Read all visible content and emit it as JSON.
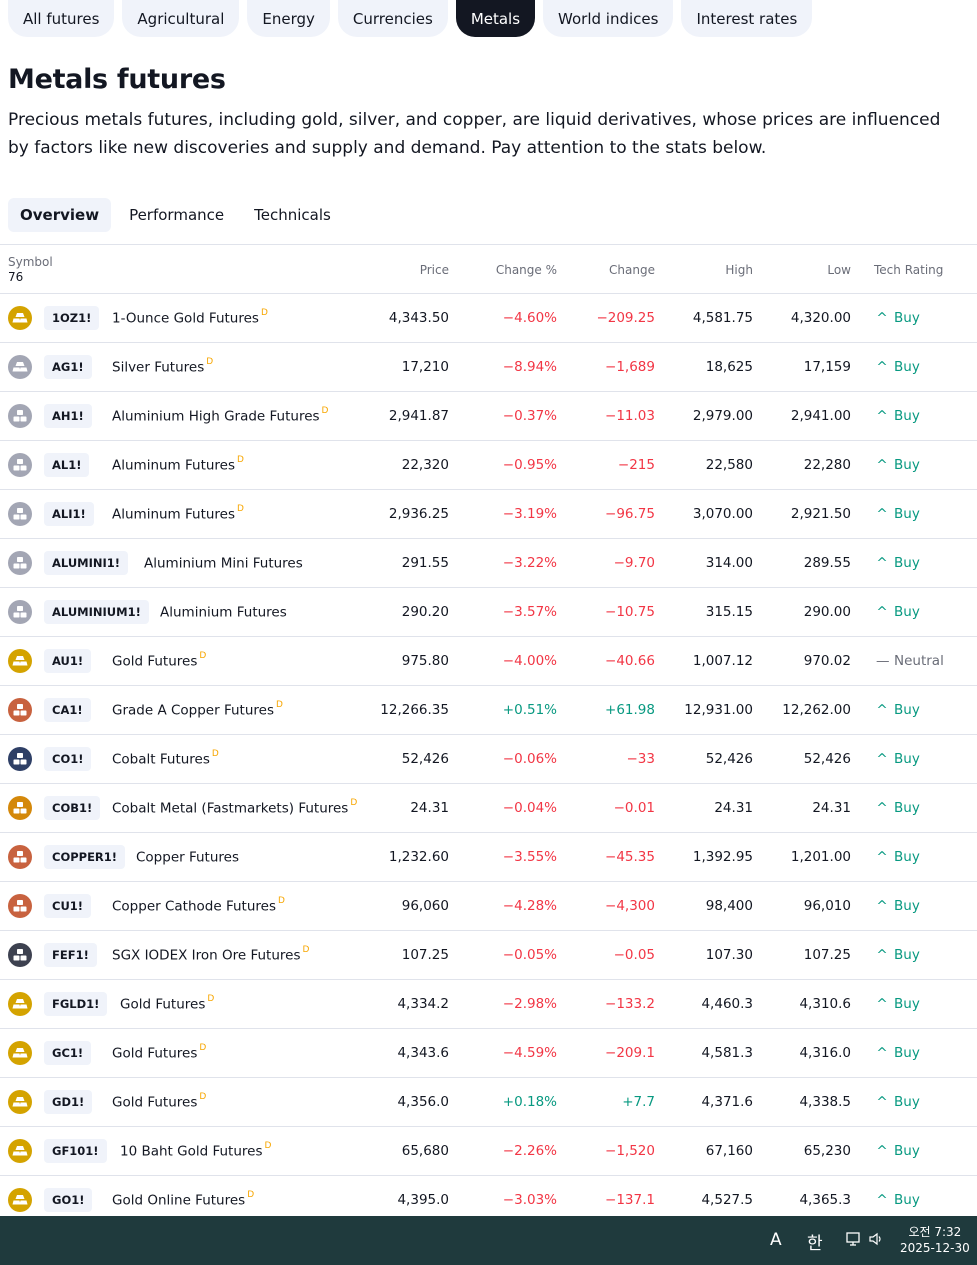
{
  "categories": [
    {
      "label": "All futures",
      "active": false
    },
    {
      "label": "Agricultural",
      "active": false
    },
    {
      "label": "Energy",
      "active": false
    },
    {
      "label": "Currencies",
      "active": false
    },
    {
      "label": "Metals",
      "active": true
    },
    {
      "label": "World indices",
      "active": false
    },
    {
      "label": "Interest rates",
      "active": false
    }
  ],
  "page": {
    "title": "Metals futures",
    "description": "Precious metals futures, including gold, silver, and copper, are liquid derivatives, whose prices are influenced by factors like new discoveries and supply and demand. Pay attention to the stats below."
  },
  "tabs": [
    {
      "label": "Overview",
      "active": true
    },
    {
      "label": "Performance",
      "active": false
    },
    {
      "label": "Technicals",
      "active": false
    }
  ],
  "table": {
    "headers": {
      "symbol": "Symbol",
      "count": "76",
      "price": "Price",
      "change_pct": "Change %",
      "change": "Change",
      "high": "High",
      "low": "Low",
      "tech_rating": "Tech Rating"
    },
    "rows": [
      {
        "ticker": "1OZ1!",
        "name": "1-Ounce Gold Futures",
        "delayed": "D",
        "icon": "gold-bars-icon",
        "icon_color": "#d4a300",
        "price": "4,343.50",
        "change_pct": "−4.60%",
        "change": "−209.25",
        "high": "4,581.75",
        "low": "4,320.00",
        "rating": "Buy",
        "rating_icon": "^",
        "dir": "neg"
      },
      {
        "ticker": "AG1!",
        "name": "Silver Futures",
        "delayed": "D",
        "icon": "silver-bars-icon",
        "icon_color": "#a3a6b4",
        "price": "17,210",
        "change_pct": "−8.94%",
        "change": "−1,689",
        "high": "18,625",
        "low": "17,159",
        "rating": "Buy",
        "rating_icon": "^",
        "dir": "neg"
      },
      {
        "ticker": "AH1!",
        "name": "Aluminium High Grade Futures",
        "delayed": "D",
        "icon": "aluminium-blocks-icon",
        "icon_color": "#a3a6b4",
        "price": "2,941.87",
        "change_pct": "−0.37%",
        "change": "−11.03",
        "high": "2,979.00",
        "low": "2,941.00",
        "rating": "Buy",
        "rating_icon": "^",
        "dir": "neg"
      },
      {
        "ticker": "AL1!",
        "name": "Aluminum Futures",
        "delayed": "D",
        "icon": "aluminium-blocks-icon",
        "icon_color": "#a3a6b4",
        "price": "22,320",
        "change_pct": "−0.95%",
        "change": "−215",
        "high": "22,580",
        "low": "22,280",
        "rating": "Buy",
        "rating_icon": "^",
        "dir": "neg"
      },
      {
        "ticker": "ALI1!",
        "name": "Aluminum Futures",
        "delayed": "D",
        "icon": "aluminium-blocks-icon",
        "icon_color": "#a3a6b4",
        "price": "2,936.25",
        "change_pct": "−3.19%",
        "change": "−96.75",
        "high": "3,070.00",
        "low": "2,921.50",
        "rating": "Buy",
        "rating_icon": "^",
        "dir": "neg"
      },
      {
        "ticker": "ALUMINI1!",
        "name": "Aluminium Mini Futures",
        "delayed": "",
        "icon": "aluminium-blocks-icon",
        "icon_color": "#a3a6b4",
        "price": "291.55",
        "change_pct": "−3.22%",
        "change": "−9.70",
        "high": "314.00",
        "low": "289.55",
        "rating": "Buy",
        "rating_icon": "^",
        "dir": "neg"
      },
      {
        "ticker": "ALUMINIUM1!",
        "name": "Aluminium Futures",
        "delayed": "",
        "icon": "aluminium-blocks-icon",
        "icon_color": "#a3a6b4",
        "price": "290.20",
        "change_pct": "−3.57%",
        "change": "−10.75",
        "high": "315.15",
        "low": "290.00",
        "rating": "Buy",
        "rating_icon": "^",
        "dir": "neg"
      },
      {
        "ticker": "AU1!",
        "name": "Gold Futures",
        "delayed": "D",
        "icon": "gold-bars-icon",
        "icon_color": "#d4a300",
        "price": "975.80",
        "change_pct": "−4.00%",
        "change": "−40.66",
        "high": "1,007.12",
        "low": "970.02",
        "rating": "Neutral",
        "rating_icon": "—",
        "dir": "neg"
      },
      {
        "ticker": "CA1!",
        "name": "Grade A Copper Futures",
        "delayed": "D",
        "icon": "copper-blocks-icon",
        "icon_color": "#c8623f",
        "price": "12,266.35",
        "change_pct": "+0.51%",
        "change": "+61.98",
        "high": "12,931.00",
        "low": "12,262.00",
        "rating": "Buy",
        "rating_icon": "^",
        "dir": "pos"
      },
      {
        "ticker": "CO1!",
        "name": "Cobalt Futures",
        "delayed": "D",
        "icon": "cobalt-blocks-icon",
        "icon_color": "#2e3f66",
        "price": "52,426",
        "change_pct": "−0.06%",
        "change": "−33",
        "high": "52,426",
        "low": "52,426",
        "rating": "Buy",
        "rating_icon": "^",
        "dir": "neg"
      },
      {
        "ticker": "COB1!",
        "name": "Cobalt Metal (Fastmarkets) Futures",
        "delayed": "D",
        "icon": "cobalt-blocks-icon",
        "icon_color": "#d4880a",
        "price": "24.31",
        "change_pct": "−0.04%",
        "change": "−0.01",
        "high": "24.31",
        "low": "24.31",
        "rating": "Buy",
        "rating_icon": "^",
        "dir": "neg"
      },
      {
        "ticker": "COPPER1!",
        "name": "Copper Futures",
        "delayed": "",
        "icon": "copper-blocks-icon",
        "icon_color": "#c8623f",
        "price": "1,232.60",
        "change_pct": "−3.55%",
        "change": "−45.35",
        "high": "1,392.95",
        "low": "1,201.00",
        "rating": "Buy",
        "rating_icon": "^",
        "dir": "neg"
      },
      {
        "ticker": "CU1!",
        "name": "Copper Cathode Futures",
        "delayed": "D",
        "icon": "copper-blocks-icon",
        "icon_color": "#c8623f",
        "price": "96,060",
        "change_pct": "−4.28%",
        "change": "−4,300",
        "high": "98,400",
        "low": "96,010",
        "rating": "Buy",
        "rating_icon": "^",
        "dir": "neg"
      },
      {
        "ticker": "FEF1!",
        "name": "SGX IODEX Iron Ore Futures",
        "delayed": "D",
        "icon": "iron-ore-blocks-icon",
        "icon_color": "#3d4150",
        "price": "107.25",
        "change_pct": "−0.05%",
        "change": "−0.05",
        "high": "107.30",
        "low": "107.25",
        "rating": "Buy",
        "rating_icon": "^",
        "dir": "neg"
      },
      {
        "ticker": "FGLD1!",
        "name": "Gold Futures",
        "delayed": "D",
        "icon": "gold-bars-icon",
        "icon_color": "#d4a300",
        "price": "4,334.2",
        "change_pct": "−2.98%",
        "change": "−133.2",
        "high": "4,460.3",
        "low": "4,310.6",
        "rating": "Buy",
        "rating_icon": "^",
        "dir": "neg"
      },
      {
        "ticker": "GC1!",
        "name": "Gold Futures",
        "delayed": "D",
        "icon": "gold-bars-icon",
        "icon_color": "#d4a300",
        "price": "4,343.6",
        "change_pct": "−4.59%",
        "change": "−209.1",
        "high": "4,581.3",
        "low": "4,316.0",
        "rating": "Buy",
        "rating_icon": "^",
        "dir": "neg"
      },
      {
        "ticker": "GD1!",
        "name": "Gold Futures",
        "delayed": "D",
        "icon": "gold-bars-icon",
        "icon_color": "#d4a300",
        "price": "4,356.0",
        "change_pct": "+0.18%",
        "change": "+7.7",
        "high": "4,371.6",
        "low": "4,338.5",
        "rating": "Buy",
        "rating_icon": "^",
        "dir": "pos"
      },
      {
        "ticker": "GF101!",
        "name": "10 Baht Gold Futures",
        "delayed": "D",
        "icon": "gold-bars-icon",
        "icon_color": "#d4a300",
        "price": "65,680",
        "change_pct": "−2.26%",
        "change": "−1,520",
        "high": "67,160",
        "low": "65,230",
        "rating": "Buy",
        "rating_icon": "^",
        "dir": "neg"
      },
      {
        "ticker": "GO1!",
        "name": "Gold Online Futures",
        "delayed": "D",
        "icon": "gold-bars-icon",
        "icon_color": "#d4a300",
        "price": "4,395.0",
        "change_pct": "−3.03%",
        "change": "−137.1",
        "high": "4,527.5",
        "low": "4,365.3",
        "rating": "Buy",
        "rating_icon": "^",
        "dir": "neg"
      }
    ]
  },
  "taskbar": {
    "ime_label": "A",
    "lang_label": "한",
    "clock_line1": "오전 7:32",
    "clock_line2": "2025-12-30"
  }
}
